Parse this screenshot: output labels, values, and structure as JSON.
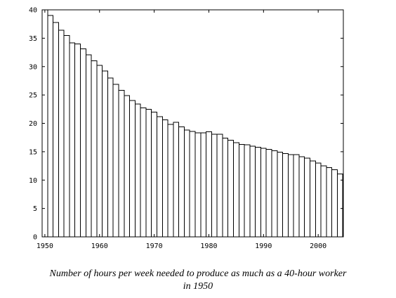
{
  "chart_data": {
    "type": "bar",
    "title": "",
    "xlabel": "",
    "ylabel": "",
    "x": [
      1950,
      1951,
      1952,
      1953,
      1954,
      1955,
      1956,
      1957,
      1958,
      1959,
      1960,
      1961,
      1962,
      1963,
      1964,
      1965,
      1966,
      1967,
      1968,
      1969,
      1970,
      1971,
      1972,
      1973,
      1974,
      1975,
      1976,
      1977,
      1978,
      1979,
      1980,
      1981,
      1982,
      1983,
      1984,
      1985,
      1986,
      1987,
      1988,
      1989,
      1990,
      1991,
      1992,
      1993,
      1994,
      1995,
      1996,
      1997,
      1998,
      1999,
      2000,
      2001,
      2002,
      2003,
      2004
    ],
    "values": [
      40.0,
      39.0,
      37.8,
      36.4,
      35.5,
      34.2,
      34.0,
      33.1,
      32.1,
      31.0,
      30.2,
      29.2,
      28.0,
      26.9,
      25.8,
      24.9,
      24.0,
      23.4,
      22.7,
      22.5,
      22.0,
      21.2,
      20.6,
      19.8,
      20.2,
      19.4,
      18.8,
      18.6,
      18.3,
      18.3,
      18.5,
      18.1,
      18.1,
      17.4,
      17.0,
      16.6,
      16.3,
      16.2,
      16.0,
      15.8,
      15.6,
      15.4,
      15.2,
      14.9,
      14.7,
      14.5,
      14.5,
      14.1,
      13.9,
      13.4,
      13.0,
      12.5,
      12.2,
      11.8,
      11.1
    ],
    "ylim": [
      0,
      40
    ],
    "xlim": [
      1949.5,
      2004.6
    ],
    "yticks": [
      "0",
      "5",
      "10",
      "15",
      "20",
      "25",
      "30",
      "35",
      "40"
    ],
    "xticks": [
      "1950",
      "1960",
      "1970",
      "1980",
      "1990",
      "2000"
    ],
    "bar_fill": "#ffffff",
    "bar_stroke": "#000000",
    "grid": false
  },
  "caption": {
    "line1": "Number of hours per week needed to produce as much as a 40-hour worker",
    "line2": "in 1950"
  }
}
